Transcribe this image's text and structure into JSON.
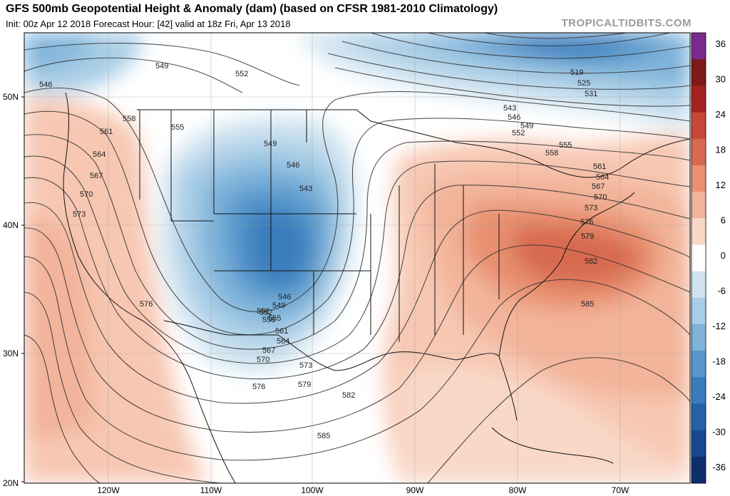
{
  "header": {
    "title": "GFS 500mb Geopotential Height & Anomaly (dam) (based on CFSR 1981-2010 Climatology)",
    "subtitle": "Init: 00z Apr 12 2018   Forecast Hour: [42]   valid at 18z Fri, Apr 13 2018",
    "brand": "TROPICALTIDBITS.COM"
  },
  "axes": {
    "lat_labels": [
      "50N",
      "40N",
      "30N",
      "20N"
    ],
    "lon_labels": [
      "120W",
      "110W",
      "100W",
      "90W",
      "80W",
      "70W"
    ]
  },
  "colorbar": {
    "labels": [
      "36",
      "30",
      "24",
      "18",
      "12",
      "6",
      "0",
      "-6",
      "-12",
      "-18",
      "-24",
      "-30",
      "-36"
    ],
    "colors": [
      "#7a2a8c",
      "#7e1a1a",
      "#a62222",
      "#c8463a",
      "#d86a50",
      "#e8906f",
      "#f2b49a",
      "#f9d8c8",
      "#ffffff",
      "#cfe3f0",
      "#a8cde6",
      "#7fb3da",
      "#5797cb",
      "#3a7bbb",
      "#2661a8",
      "#17488f",
      "#0f2f6a"
    ]
  },
  "contour_labels": [
    "546",
    "549",
    "552",
    "549",
    "546",
    "543",
    "546",
    "549",
    "552",
    "555",
    "558",
    "561",
    "564",
    "567",
    "570",
    "573",
    "576",
    "579",
    "582",
    "585",
    "519",
    "525",
    "531",
    "543",
    "546",
    "549",
    "552",
    "555",
    "558",
    "561",
    "564",
    "567",
    "570",
    "573",
    "576",
    "579",
    "582",
    "585",
    "552",
    "555",
    "558",
    "561",
    "564",
    "567",
    "570",
    "573",
    "576",
    "579",
    "582",
    "585"
  ]
}
